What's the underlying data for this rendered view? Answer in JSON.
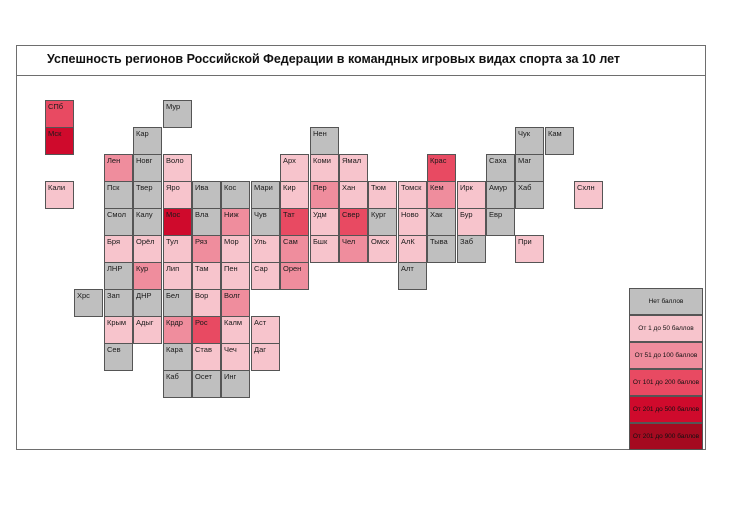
{
  "title": "Успешность регионов Российской Федерации в командных игровых видах спорта за 10 лет",
  "colors": {
    "c0": "#bfbfbf",
    "c1": "#f7c4cc",
    "c2": "#ef8d9d",
    "c3": "#e84a62",
    "c4": "#cf0a2c",
    "c5": "#a50a20"
  },
  "legend": [
    {
      "label": "Нет баллов",
      "cls": "c0"
    },
    {
      "label": "От 1 до 50 баллов",
      "cls": "c1"
    },
    {
      "label": "От 51 до 100 баллов",
      "cls": "c2"
    },
    {
      "label": "От 101 до 200 баллов",
      "cls": "c3"
    },
    {
      "label": "От 201 до 500 баллов",
      "cls": "c4"
    },
    {
      "label": "От 201 до 900 баллов",
      "cls": "c5"
    }
  ],
  "regions": [
    {
      "label": "СПб",
      "col": 0,
      "row": 0,
      "cls": "c3"
    },
    {
      "label": "Мск",
      "col": 0,
      "row": 1,
      "cls": "c4"
    },
    {
      "label": "Мур",
      "col": 4,
      "row": 0,
      "cls": "c0"
    },
    {
      "label": "Кар",
      "col": 3,
      "row": 1,
      "cls": "c0"
    },
    {
      "label": "Нен",
      "col": 9,
      "row": 1,
      "cls": "c0"
    },
    {
      "label": "Чук",
      "col": 16,
      "row": 1,
      "cls": "c0"
    },
    {
      "label": "Кам",
      "col": 17,
      "row": 1,
      "cls": "c0"
    },
    {
      "label": "Лен",
      "col": 2,
      "row": 2,
      "cls": "c2"
    },
    {
      "label": "Новг",
      "col": 3,
      "row": 2,
      "cls": "c0"
    },
    {
      "label": "Воло",
      "col": 4,
      "row": 2,
      "cls": "c1"
    },
    {
      "label": "Арх",
      "col": 8,
      "row": 2,
      "cls": "c1"
    },
    {
      "label": "Коми",
      "col": 9,
      "row": 2,
      "cls": "c1"
    },
    {
      "label": "Ямал",
      "col": 10,
      "row": 2,
      "cls": "c1"
    },
    {
      "label": "Крас",
      "col": 13,
      "row": 2,
      "cls": "c3"
    },
    {
      "label": "Саха",
      "col": 15,
      "row": 2,
      "cls": "c0"
    },
    {
      "label": "Маг",
      "col": 16,
      "row": 2,
      "cls": "c0"
    },
    {
      "label": "Кали",
      "col": 0,
      "row": 3,
      "cls": "c1"
    },
    {
      "label": "Пск",
      "col": 2,
      "row": 3,
      "cls": "c0"
    },
    {
      "label": "Твер",
      "col": 3,
      "row": 3,
      "cls": "c0"
    },
    {
      "label": "Яро",
      "col": 4,
      "row": 3,
      "cls": "c1"
    },
    {
      "label": "Ива",
      "col": 5,
      "row": 3,
      "cls": "c0"
    },
    {
      "label": "Кос",
      "col": 6,
      "row": 3,
      "cls": "c0"
    },
    {
      "label": "Мари",
      "col": 7,
      "row": 3,
      "cls": "c0"
    },
    {
      "label": "Кир",
      "col": 8,
      "row": 3,
      "cls": "c1"
    },
    {
      "label": "Пер",
      "col": 9,
      "row": 3,
      "cls": "c2"
    },
    {
      "label": "Хан",
      "col": 10,
      "row": 3,
      "cls": "c1"
    },
    {
      "label": "Тюм",
      "col": 11,
      "row": 3,
      "cls": "c1"
    },
    {
      "label": "Томск",
      "col": 12,
      "row": 3,
      "cls": "c1"
    },
    {
      "label": "Кем",
      "col": 13,
      "row": 3,
      "cls": "c2"
    },
    {
      "label": "Ирк",
      "col": 14,
      "row": 3,
      "cls": "c1"
    },
    {
      "label": "Амур",
      "col": 15,
      "row": 3,
      "cls": "c0"
    },
    {
      "label": "Хаб",
      "col": 16,
      "row": 3,
      "cls": "c0"
    },
    {
      "label": "Схлн",
      "col": 18,
      "row": 3,
      "cls": "c1"
    },
    {
      "label": "Смол",
      "col": 2,
      "row": 4,
      "cls": "c0"
    },
    {
      "label": "Калу",
      "col": 3,
      "row": 4,
      "cls": "c0"
    },
    {
      "label": "Мос",
      "col": 4,
      "row": 4,
      "cls": "c4"
    },
    {
      "label": "Вла",
      "col": 5,
      "row": 4,
      "cls": "c0"
    },
    {
      "label": "Ниж",
      "col": 6,
      "row": 4,
      "cls": "c2"
    },
    {
      "label": "Чув",
      "col": 7,
      "row": 4,
      "cls": "c0"
    },
    {
      "label": "Тат",
      "col": 8,
      "row": 4,
      "cls": "c3"
    },
    {
      "label": "Удм",
      "col": 9,
      "row": 4,
      "cls": "c1"
    },
    {
      "label": "Свер",
      "col": 10,
      "row": 4,
      "cls": "c3"
    },
    {
      "label": "Кург",
      "col": 11,
      "row": 4,
      "cls": "c0"
    },
    {
      "label": "Ново",
      "col": 12,
      "row": 4,
      "cls": "c1"
    },
    {
      "label": "Хак",
      "col": 13,
      "row": 4,
      "cls": "c0"
    },
    {
      "label": "Бур",
      "col": 14,
      "row": 4,
      "cls": "c1"
    },
    {
      "label": "Евр",
      "col": 15,
      "row": 4,
      "cls": "c0"
    },
    {
      "label": "Бря",
      "col": 2,
      "row": 5,
      "cls": "c1"
    },
    {
      "label": "Орёл",
      "col": 3,
      "row": 5,
      "cls": "c1"
    },
    {
      "label": "Тул",
      "col": 4,
      "row": 5,
      "cls": "c1"
    },
    {
      "label": "Ряз",
      "col": 5,
      "row": 5,
      "cls": "c2"
    },
    {
      "label": "Мор",
      "col": 6,
      "row": 5,
      "cls": "c1"
    },
    {
      "label": "Уль",
      "col": 7,
      "row": 5,
      "cls": "c1"
    },
    {
      "label": "Сам",
      "col": 8,
      "row": 5,
      "cls": "c2"
    },
    {
      "label": "Бшк",
      "col": 9,
      "row": 5,
      "cls": "c1"
    },
    {
      "label": "Чел",
      "col": 10,
      "row": 5,
      "cls": "c2"
    },
    {
      "label": "Омск",
      "col": 11,
      "row": 5,
      "cls": "c1"
    },
    {
      "label": "АлК",
      "col": 12,
      "row": 5,
      "cls": "c1"
    },
    {
      "label": "Тыва",
      "col": 13,
      "row": 5,
      "cls": "c0"
    },
    {
      "label": "Заб",
      "col": 14,
      "row": 5,
      "cls": "c0"
    },
    {
      "label": "При",
      "col": 16,
      "row": 5,
      "cls": "c1"
    },
    {
      "label": "ЛНР",
      "col": 2,
      "row": 6,
      "cls": "c0"
    },
    {
      "label": "Кур",
      "col": 3,
      "row": 6,
      "cls": "c2"
    },
    {
      "label": "Лип",
      "col": 4,
      "row": 6,
      "cls": "c1"
    },
    {
      "label": "Там",
      "col": 5,
      "row": 6,
      "cls": "c1"
    },
    {
      "label": "Пен",
      "col": 6,
      "row": 6,
      "cls": "c1"
    },
    {
      "label": "Сар",
      "col": 7,
      "row": 6,
      "cls": "c1"
    },
    {
      "label": "Орен",
      "col": 8,
      "row": 6,
      "cls": "c2"
    },
    {
      "label": "Алт",
      "col": 12,
      "row": 6,
      "cls": "c0"
    },
    {
      "label": "Хрс",
      "col": 1,
      "row": 7,
      "cls": "c0"
    },
    {
      "label": "Зап",
      "col": 2,
      "row": 7,
      "cls": "c0"
    },
    {
      "label": "ДНР",
      "col": 3,
      "row": 7,
      "cls": "c0"
    },
    {
      "label": "Бел",
      "col": 4,
      "row": 7,
      "cls": "c0"
    },
    {
      "label": "Вор",
      "col": 5,
      "row": 7,
      "cls": "c1"
    },
    {
      "label": "Волг",
      "col": 6,
      "row": 7,
      "cls": "c2"
    },
    {
      "label": "Крым",
      "col": 2,
      "row": 8,
      "cls": "c1"
    },
    {
      "label": "Адыг",
      "col": 3,
      "row": 8,
      "cls": "c1"
    },
    {
      "label": "Крдр",
      "col": 4,
      "row": 8,
      "cls": "c2"
    },
    {
      "label": "Рос",
      "col": 5,
      "row": 8,
      "cls": "c3"
    },
    {
      "label": "Калм",
      "col": 6,
      "row": 8,
      "cls": "c1"
    },
    {
      "label": "Аст",
      "col": 7,
      "row": 8,
      "cls": "c1"
    },
    {
      "label": "Сев",
      "col": 2,
      "row": 9,
      "cls": "c0"
    },
    {
      "label": "Кара",
      "col": 4,
      "row": 9,
      "cls": "c0"
    },
    {
      "label": "Став",
      "col": 5,
      "row": 9,
      "cls": "c1"
    },
    {
      "label": "Чеч",
      "col": 6,
      "row": 9,
      "cls": "c1"
    },
    {
      "label": "Даг",
      "col": 7,
      "row": 9,
      "cls": "c1"
    },
    {
      "label": "Каб",
      "col": 4,
      "row": 10,
      "cls": "c0"
    },
    {
      "label": "Осет",
      "col": 5,
      "row": 10,
      "cls": "c0"
    },
    {
      "label": "Инг",
      "col": 6,
      "row": 10,
      "cls": "c0"
    }
  ]
}
